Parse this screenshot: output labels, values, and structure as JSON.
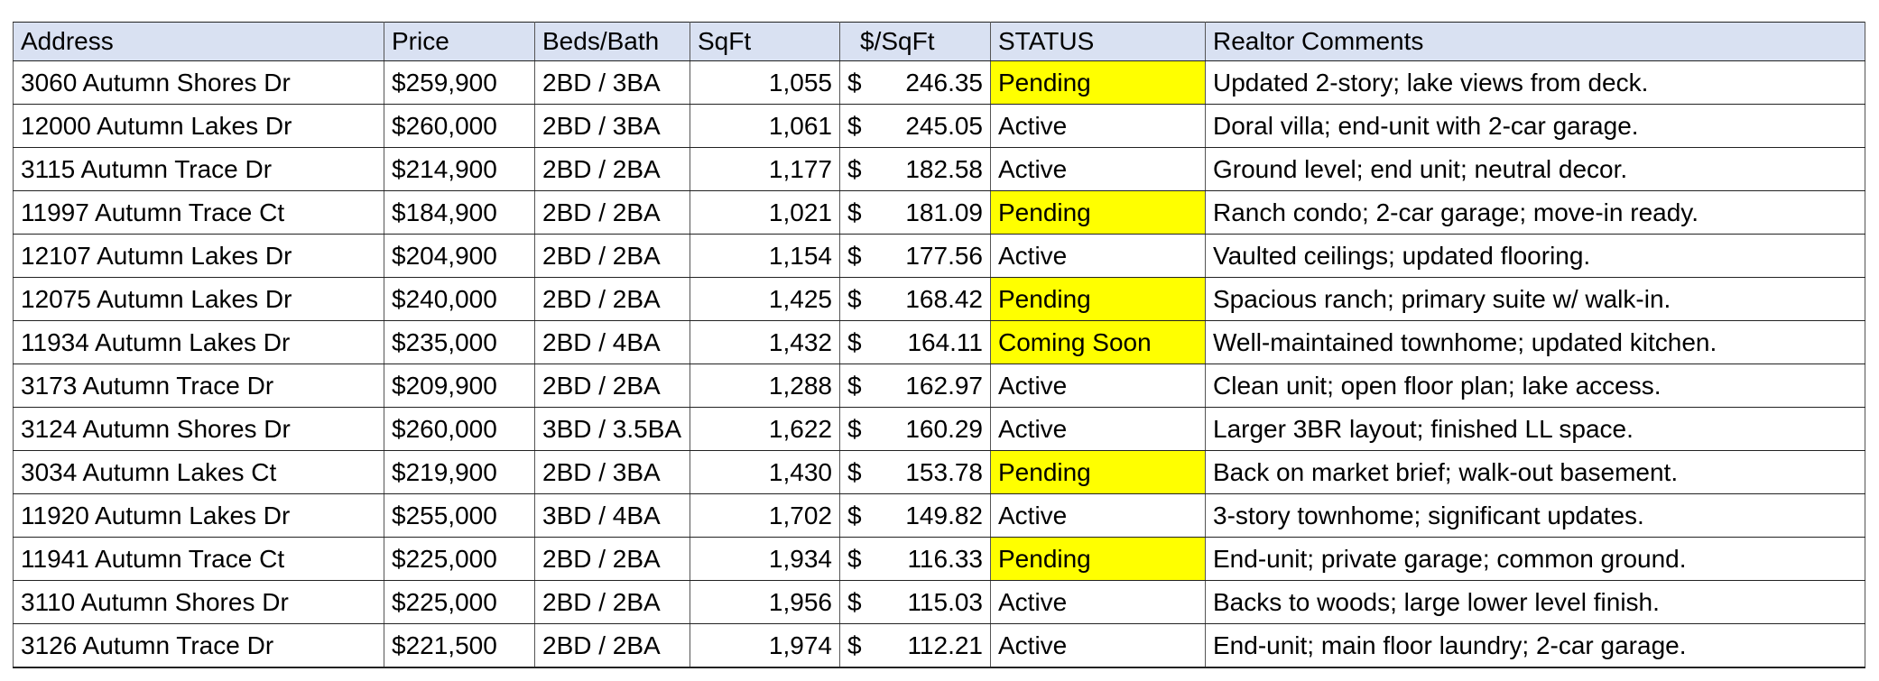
{
  "headers": [
    "Address",
    "Price",
    "Beds/Bath",
    "SqFt",
    "$/SqFt",
    "STATUS",
    "Realtor Comments"
  ],
  "colors": {
    "header_bg": "#d9e1f2",
    "status_highlight": "#ffff00"
  },
  "highlighted_statuses": [
    "Pending",
    "Coming Soon"
  ],
  "rows": [
    {
      "address": "3060 Autumn Shores Dr",
      "price": "$259,900",
      "beds_bath": "2BD / 3BA",
      "sqft": "1,055",
      "ppsf": "246.35",
      "status": "Pending",
      "comments": "Updated 2-story; lake views from deck."
    },
    {
      "address": "12000 Autumn Lakes Dr",
      "price": "$260,000",
      "beds_bath": "2BD / 3BA",
      "sqft": "1,061",
      "ppsf": "245.05",
      "status": "Active",
      "comments": "Doral villa; end-unit with 2-car garage."
    },
    {
      "address": "3115 Autumn Trace Dr",
      "price": "$214,900",
      "beds_bath": "2BD / 2BA",
      "sqft": "1,177",
      "ppsf": "182.58",
      "status": "Active",
      "comments": "Ground level; end unit; neutral decor."
    },
    {
      "address": "11997 Autumn Trace Ct",
      "price": "$184,900",
      "beds_bath": "2BD / 2BA",
      "sqft": "1,021",
      "ppsf": "181.09",
      "status": "Pending",
      "comments": "Ranch condo; 2-car garage; move-in ready."
    },
    {
      "address": "12107 Autumn Lakes Dr",
      "price": "$204,900",
      "beds_bath": "2BD / 2BA",
      "sqft": "1,154",
      "ppsf": "177.56",
      "status": "Active",
      "comments": "Vaulted ceilings; updated flooring."
    },
    {
      "address": "12075 Autumn Lakes Dr",
      "price": "$240,000",
      "beds_bath": "2BD / 2BA",
      "sqft": "1,425",
      "ppsf": "168.42",
      "status": "Pending",
      "comments": "Spacious ranch; primary suite w/ walk-in."
    },
    {
      "address": "11934 Autumn Lakes Dr",
      "price": "$235,000",
      "beds_bath": "2BD / 4BA",
      "sqft": "1,432",
      "ppsf": "164.11",
      "status": "Coming Soon",
      "comments": "Well-maintained townhome; updated kitchen."
    },
    {
      "address": "3173 Autumn Trace Dr",
      "price": "$209,900",
      "beds_bath": "2BD / 2BA",
      "sqft": "1,288",
      "ppsf": "162.97",
      "status": "Active",
      "comments": "Clean unit; open floor plan; lake access."
    },
    {
      "address": "3124 Autumn Shores Dr",
      "price": "$260,000",
      "beds_bath": "3BD / 3.5BA",
      "sqft": "1,622",
      "ppsf": "160.29",
      "status": "Active",
      "comments": "Larger 3BR layout; finished LL space."
    },
    {
      "address": "3034 Autumn Lakes Ct",
      "price": "$219,900",
      "beds_bath": "2BD / 3BA",
      "sqft": "1,430",
      "ppsf": "153.78",
      "status": "Pending",
      "comments": "Back on market brief; walk-out basement."
    },
    {
      "address": "11920 Autumn Lakes Dr",
      "price": "$255,000",
      "beds_bath": "3BD / 4BA",
      "sqft": "1,702",
      "ppsf": "149.82",
      "status": "Active",
      "comments": "3-story townhome; significant updates."
    },
    {
      "address": "11941 Autumn Trace Ct",
      "price": "$225,000",
      "beds_bath": "2BD / 2BA",
      "sqft": "1,934",
      "ppsf": "116.33",
      "status": "Pending",
      "comments": "End-unit; private garage; common ground."
    },
    {
      "address": "3110 Autumn Shores Dr",
      "price": "$225,000",
      "beds_bath": "2BD / 2BA",
      "sqft": "1,956",
      "ppsf": "115.03",
      "status": "Active",
      "comments": "Backs to woods; large lower level finish."
    },
    {
      "address": "3126 Autumn Trace Dr",
      "price": "$221,500",
      "beds_bath": "2BD / 2BA",
      "sqft": "1,974",
      "ppsf": "112.21",
      "status": "Active",
      "comments": "End-unit; main floor laundry; 2-car garage."
    }
  ],
  "currency_symbol": "$"
}
